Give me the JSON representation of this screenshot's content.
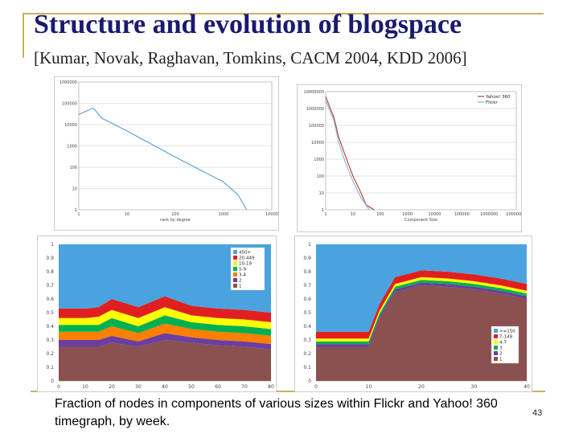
{
  "slide": {
    "title": "Structure and evolution of blogspace",
    "subtitle": "[Kumar, Novak, Raghavan, Tomkins, CACM 2004, KDD 2006]",
    "caption": "Fraction of nodes in components of various sizes within Flickr and Yahoo! 360 timegraph, by week.",
    "page_number": "43"
  },
  "colors": {
    "title": "#1a1a6e",
    "frame": "#c8b25a"
  },
  "chart_data": [
    {
      "type": "line",
      "scale": "log-log",
      "xlabel": "rank by degree",
      "x_ticks": [
        "1",
        "10",
        "100",
        "1000",
        "10000"
      ],
      "y_ticks": [
        "1",
        "10",
        "100",
        "1000",
        "10000",
        "100000",
        "1000000"
      ],
      "grid": true,
      "series": [
        {
          "color": "#5b9bd5",
          "points": [
            [
              1,
              30000
            ],
            [
              2,
              60000
            ],
            [
              3,
              20000
            ],
            [
              10,
              5000
            ],
            [
              100,
              300
            ],
            [
              1000,
              20
            ],
            [
              2000,
              5
            ],
            [
              3000,
              1
            ]
          ]
        }
      ]
    },
    {
      "type": "line",
      "scale": "log-log",
      "xlabel": "Component Size",
      "x_ticks": [
        "1",
        "10",
        "100",
        "1000",
        "10000",
        "100000",
        "1000000",
        "10000000"
      ],
      "y_ticks": [
        "1",
        "10",
        "100",
        "1000",
        "10000",
        "100000",
        "1000000",
        "10000000"
      ],
      "legend_position": "top-right",
      "grid": true,
      "series": [
        {
          "name": "Yahoo! 360",
          "color": "#c0392b",
          "points": [
            [
              1,
              5000000
            ],
            [
              2,
              300000
            ],
            [
              3,
              20000
            ],
            [
              5,
              2000
            ],
            [
              10,
              100
            ],
            [
              20,
              10
            ],
            [
              30,
              2
            ],
            [
              60,
              1
            ]
          ]
        },
        {
          "name": "Flickr",
          "color": "#7fb3e0",
          "points": [
            [
              1,
              3000000
            ],
            [
              2,
              200000
            ],
            [
              3,
              10000
            ],
            [
              5,
              800
            ],
            [
              10,
              50
            ],
            [
              20,
              5
            ],
            [
              40,
              1
            ]
          ]
        }
      ]
    },
    {
      "type": "area",
      "stacked": true,
      "x_ticks": [
        "0",
        "10",
        "20",
        "30",
        "40",
        "50",
        "60",
        "70",
        "80"
      ],
      "y_ticks": [
        "0",
        "0.1",
        "0.2",
        "0.3",
        "0.4",
        "0.5",
        "0.6",
        "0.7",
        "0.8",
        "0.9",
        "1"
      ],
      "ylim": [
        0,
        1
      ],
      "legend_position": "top-right",
      "series": [
        {
          "name": "1",
          "color": "#8b5050"
        },
        {
          "name": "2",
          "color": "#6a3fa0"
        },
        {
          "name": "3-4",
          "color": "#ff7f00"
        },
        {
          "name": "5-9",
          "color": "#00b050"
        },
        {
          "name": "10-19",
          "color": "#ffff00"
        },
        {
          "name": "20-449",
          "color": "#e02020"
        },
        {
          "name": "450+",
          "color": "#4aa3df"
        }
      ],
      "x": [
        0,
        10,
        15,
        20,
        30,
        40,
        50,
        60,
        70,
        80
      ],
      "bands": [
        [
          0.25,
          0.25,
          0.25,
          0.28,
          0.25,
          0.3,
          0.28,
          0.26,
          0.25,
          0.23
        ],
        [
          0.05,
          0.05,
          0.05,
          0.05,
          0.04,
          0.05,
          0.04,
          0.04,
          0.04,
          0.04
        ],
        [
          0.06,
          0.06,
          0.06,
          0.07,
          0.06,
          0.07,
          0.06,
          0.06,
          0.06,
          0.06
        ],
        [
          0.05,
          0.05,
          0.05,
          0.06,
          0.05,
          0.06,
          0.05,
          0.05,
          0.05,
          0.05
        ],
        [
          0.05,
          0.05,
          0.06,
          0.06,
          0.06,
          0.06,
          0.05,
          0.05,
          0.05,
          0.05
        ],
        [
          0.07,
          0.07,
          0.07,
          0.08,
          0.08,
          0.08,
          0.07,
          0.07,
          0.07,
          0.07
        ],
        [
          0.47,
          0.47,
          0.46,
          0.4,
          0.46,
          0.38,
          0.45,
          0.47,
          0.48,
          0.5
        ]
      ]
    },
    {
      "type": "area",
      "stacked": true,
      "x_ticks": [
        "0",
        "10",
        "20",
        "30",
        "40"
      ],
      "y_ticks": [
        "0",
        "0.1",
        "0.2",
        "0.3",
        "0.4",
        "0.5",
        "0.6",
        "0.7",
        "0.8",
        "0.9",
        "1"
      ],
      "ylim": [
        0,
        1
      ],
      "legend_position": "bottom-right",
      "series": [
        {
          "name": "1",
          "color": "#8b5050"
        },
        {
          "name": "2",
          "color": "#6a3fa0"
        },
        {
          "name": "3",
          "color": "#00b050"
        },
        {
          "name": "4-7",
          "color": "#ffff00"
        },
        {
          "name": "7-149",
          "color": "#e02020"
        },
        {
          "name": ">=150",
          "color": "#4aa3df"
        }
      ],
      "x": [
        0,
        5,
        10,
        12,
        15,
        20,
        25,
        30,
        35,
        40
      ],
      "bands": [
        [
          0.25,
          0.25,
          0.25,
          0.45,
          0.65,
          0.7,
          0.69,
          0.67,
          0.64,
          0.6
        ],
        [
          0.02,
          0.02,
          0.02,
          0.02,
          0.02,
          0.02,
          0.02,
          0.02,
          0.02,
          0.02
        ],
        [
          0.02,
          0.02,
          0.02,
          0.02,
          0.02,
          0.02,
          0.02,
          0.02,
          0.02,
          0.02
        ],
        [
          0.02,
          0.02,
          0.02,
          0.02,
          0.02,
          0.02,
          0.02,
          0.02,
          0.02,
          0.02
        ],
        [
          0.05,
          0.05,
          0.05,
          0.05,
          0.05,
          0.05,
          0.05,
          0.05,
          0.05,
          0.05
        ],
        [
          0.64,
          0.64,
          0.64,
          0.44,
          0.24,
          0.19,
          0.2,
          0.22,
          0.25,
          0.29
        ]
      ]
    }
  ]
}
